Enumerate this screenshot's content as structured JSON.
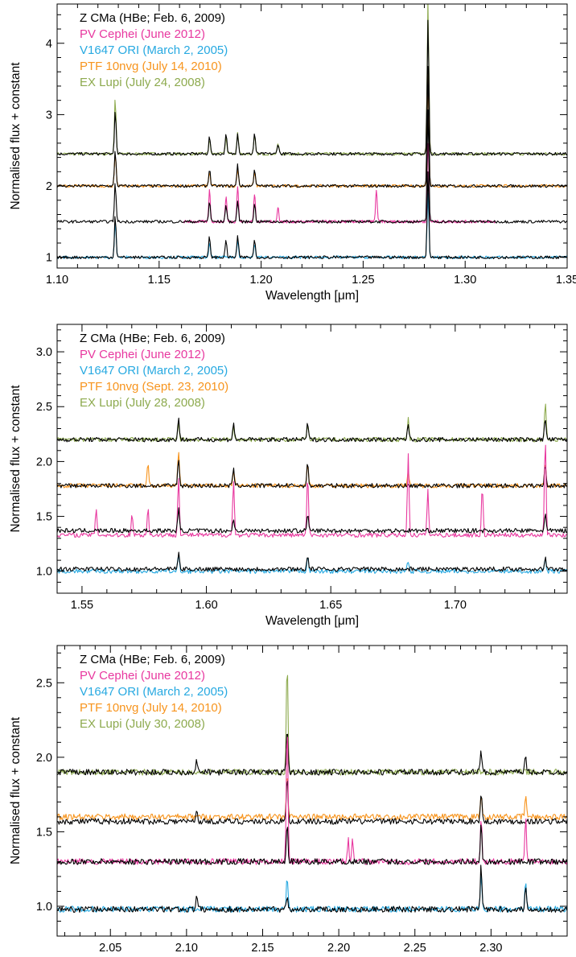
{
  "colors": {
    "black": "#000000",
    "magenta": "#e8389f",
    "blue": "#27a9e1",
    "orange": "#f7941d",
    "green": "#8daa4e"
  },
  "chart_data": [
    {
      "type": "line",
      "xlabel": "Wavelength [μm]",
      "ylabel": "Normalised flux + constant",
      "xlim": [
        1.1,
        1.35
      ],
      "ylim": [
        0.85,
        4.55
      ],
      "xticks": [
        "1.10",
        "1.15",
        "1.20",
        "1.25",
        "1.30",
        "1.35"
      ],
      "xtick_values": [
        1.1,
        1.15,
        1.2,
        1.25,
        1.3,
        1.35
      ],
      "yticks": [
        "1",
        "2",
        "3",
        "4"
      ],
      "ytick_values": [
        1,
        2,
        3,
        4
      ],
      "legend_position": "top-left",
      "legend": [
        {
          "label": "Z CMa (HBe; Feb. 6, 2009)",
          "color": "#000000"
        },
        {
          "label": "PV Cephei (June 2012)",
          "color": "#e8389f"
        },
        {
          "label": "V1647 ORI (March 2, 2005)",
          "color": "#27a9e1"
        },
        {
          "label": "PTF 10nvg (July 14, 2010)",
          "color": "#f7941d"
        },
        {
          "label": "EX Lupi (July 24, 2008)",
          "color": "#8daa4e"
        }
      ],
      "series": [
        {
          "name": "EX Lupi (July 24, 2008)",
          "color": "#8daa4e",
          "baseline": 2.45,
          "x": [
            1.1,
            1.35
          ],
          "lines": [
            [
              1.1285,
              0.8
            ],
            [
              1.1747,
              0.2
            ],
            [
              1.1828,
              0.25
            ],
            [
              1.1885,
              0.3
            ],
            [
              1.1968,
              0.25
            ],
            [
              1.2083,
              0.15
            ],
            [
              1.2818,
              2.2
            ]
          ]
        },
        {
          "name": "Z CMa (HBe; Feb. 6, 2009)",
          "color": "#000000",
          "baseline": 2.45,
          "x": [
            1.1,
            1.35
          ],
          "lines": [
            [
              1.1285,
              0.6
            ],
            [
              1.1747,
              0.25
            ],
            [
              1.1828,
              0.3
            ],
            [
              1.1885,
              0.3
            ],
            [
              1.1968,
              0.3
            ],
            [
              1.2083,
              0.15
            ],
            [
              1.2818,
              1.9
            ]
          ]
        },
        {
          "name": "PTF 10nvg (July 14, 2010)",
          "color": "#f7941d",
          "baseline": 2.0,
          "x": [
            1.1,
            1.35
          ],
          "lines": [
            [
              1.1285,
              0.45
            ],
            [
              1.1747,
              0.2
            ],
            [
              1.1885,
              0.25
            ],
            [
              1.1968,
              0.2
            ],
            [
              1.2818,
              1.6
            ]
          ]
        },
        {
          "name": "Z CMa (HBe; Feb. 6, 2009)",
          "color": "#000000",
          "baseline": 2.0,
          "x": [
            1.1,
            1.35
          ],
          "lines": [
            [
              1.1285,
              0.5
            ],
            [
              1.1747,
              0.25
            ],
            [
              1.1885,
              0.3
            ],
            [
              1.1968,
              0.25
            ],
            [
              1.2818,
              1.7
            ]
          ]
        },
        {
          "name": "PV Cephei (June 2012)",
          "color": "#e8389f",
          "baseline": 1.5,
          "x": [
            1.162,
            1.315
          ],
          "lines": [
            [
              1.1747,
              0.45
            ],
            [
              1.1828,
              0.35
            ],
            [
              1.1885,
              0.5
            ],
            [
              1.1968,
              0.4
            ],
            [
              1.2083,
              0.2
            ],
            [
              1.2565,
              0.45
            ],
            [
              1.2818,
              1.1
            ]
          ]
        },
        {
          "name": "Z CMa (HBe; Feb. 6, 2009)",
          "color": "#000000",
          "baseline": 1.5,
          "x": [
            1.1,
            1.35
          ],
          "lines": [
            [
              1.1285,
              0.55
            ],
            [
              1.1747,
              0.3
            ],
            [
              1.1828,
              0.25
            ],
            [
              1.1885,
              0.3
            ],
            [
              1.1968,
              0.25
            ],
            [
              1.2818,
              1.6
            ]
          ]
        },
        {
          "name": "V1647 ORI (March 2, 2005)",
          "color": "#27a9e1",
          "baseline": 1.0,
          "x": [
            1.1,
            1.35
          ],
          "lines": [
            [
              1.1285,
              0.5
            ],
            [
              1.1747,
              0.2
            ],
            [
              1.1885,
              0.25
            ],
            [
              1.1968,
              0.2
            ],
            [
              1.2818,
              0.9
            ]
          ]
        },
        {
          "name": "Z CMa (HBe; Feb. 6, 2009)",
          "color": "#000000",
          "baseline": 1.0,
          "x": [
            1.1,
            1.35
          ],
          "lines": [
            [
              1.1285,
              0.6
            ],
            [
              1.1747,
              0.3
            ],
            [
              1.1828,
              0.25
            ],
            [
              1.1885,
              0.3
            ],
            [
              1.1968,
              0.25
            ],
            [
              1.2818,
              1.2
            ]
          ]
        }
      ]
    },
    {
      "type": "line",
      "xlabel": "Wavelength [μm]",
      "ylabel": "Normalised flux + constant",
      "xlim": [
        1.54,
        1.745
      ],
      "ylim": [
        0.8,
        3.25
      ],
      "xticks": [
        "1.55",
        "1.60",
        "1.65",
        "1.70"
      ],
      "xtick_values": [
        1.55,
        1.6,
        1.65,
        1.7
      ],
      "yticks": [
        "1.0",
        "1.5",
        "2.0",
        "2.5",
        "3.0"
      ],
      "ytick_values": [
        1.0,
        1.5,
        2.0,
        2.5,
        3.0
      ],
      "legend_position": "top-left",
      "legend": [
        {
          "label": "Z CMa (HBe; Feb. 6, 2009)",
          "color": "#000000"
        },
        {
          "label": "PV Cephei (June 2012)",
          "color": "#e8389f"
        },
        {
          "label": "V1647 ORI (March 2, 2005)",
          "color": "#27a9e1"
        },
        {
          "label": "PTF 10nvg (Sept. 23, 2010)",
          "color": "#f7941d"
        },
        {
          "label": "EX Lupi (July 28, 2008)",
          "color": "#8daa4e"
        }
      ],
      "series": [
        {
          "name": "EX Lupi (July 28, 2008)",
          "color": "#8daa4e",
          "baseline": 2.2,
          "x": [
            1.54,
            1.745
          ],
          "lines": [
            [
              1.5888,
              0.15
            ],
            [
              1.6109,
              0.12
            ],
            [
              1.6407,
              0.15
            ],
            [
              1.6811,
              0.2
            ],
            [
              1.7362,
              0.35
            ]
          ]
        },
        {
          "name": "Z CMa (HBe; Feb. 6, 2009)",
          "color": "#000000",
          "baseline": 2.2,
          "x": [
            1.54,
            1.745
          ],
          "lines": [
            [
              1.5888,
              0.2
            ],
            [
              1.6109,
              0.15
            ],
            [
              1.6407,
              0.15
            ],
            [
              1.6811,
              0.15
            ],
            [
              1.7362,
              0.2
            ]
          ]
        },
        {
          "name": "PTF 10nvg (Sept. 23, 2010)",
          "color": "#f7941d",
          "baseline": 1.78,
          "x": [
            1.54,
            1.745
          ],
          "lines": [
            [
              1.5765,
              0.2
            ],
            [
              1.5888,
              0.3
            ],
            [
              1.6109,
              0.15
            ],
            [
              1.6407,
              0.2
            ],
            [
              1.6811,
              0.15
            ],
            [
              1.7362,
              0.2
            ]
          ]
        },
        {
          "name": "Z CMa (HBe; Feb. 6, 2009)",
          "color": "#000000",
          "baseline": 1.78,
          "x": [
            1.54,
            1.745
          ],
          "lines": [
            [
              1.5888,
              0.25
            ],
            [
              1.6109,
              0.15
            ],
            [
              1.6407,
              0.2
            ],
            [
              1.7362,
              0.2
            ]
          ]
        },
        {
          "name": "PV Cephei (June 2012)",
          "color": "#e8389f",
          "baseline": 1.33,
          "x": [
            1.54,
            1.745
          ],
          "lines": [
            [
              1.5557,
              0.25
            ],
            [
              1.5701,
              0.2
            ],
            [
              1.5765,
              0.25
            ],
            [
              1.5888,
              0.55
            ],
            [
              1.6109,
              0.5
            ],
            [
              1.6407,
              0.55
            ],
            [
              1.6811,
              0.75
            ],
            [
              1.689,
              0.4
            ],
            [
              1.7109,
              0.45
            ],
            [
              1.7362,
              0.9
            ]
          ]
        },
        {
          "name": "Z CMa (HBe; Feb. 6, 2009)",
          "color": "#000000",
          "baseline": 1.37,
          "x": [
            1.54,
            1.745
          ],
          "lines": [
            [
              1.5888,
              0.2
            ],
            [
              1.6109,
              0.1
            ],
            [
              1.6407,
              0.15
            ],
            [
              1.7362,
              0.15
            ]
          ]
        },
        {
          "name": "V1647 ORI (March 2, 2005)",
          "color": "#27a9e1",
          "baseline": 1.0,
          "x": [
            1.54,
            1.745
          ],
          "lines": [
            [
              1.5888,
              0.15
            ],
            [
              1.6407,
              0.15
            ],
            [
              1.6811,
              0.1
            ],
            [
              1.7362,
              0.12
            ]
          ]
        },
        {
          "name": "Z CMa (HBe; Feb. 6, 2009)",
          "color": "#000000",
          "baseline": 1.02,
          "x": [
            1.54,
            1.745
          ],
          "lines": [
            [
              1.5888,
              0.15
            ],
            [
              1.6407,
              0.12
            ],
            [
              1.7362,
              0.1
            ]
          ]
        }
      ]
    },
    {
      "type": "line",
      "xlabel": "Wavelength [μm]",
      "ylabel": "Normalised flux + constant",
      "xlim": [
        2.015,
        2.35
      ],
      "ylim": [
        0.8,
        2.75
      ],
      "xticks": [
        "2.05",
        "2.10",
        "2.15",
        "2.20",
        "2.25",
        "2.30"
      ],
      "xtick_values": [
        2.05,
        2.1,
        2.15,
        2.2,
        2.25,
        2.3
      ],
      "yticks": [
        "1.0",
        "1.5",
        "2.0",
        "2.5"
      ],
      "ytick_values": [
        1.0,
        1.5,
        2.0,
        2.5
      ],
      "legend_position": "top-left",
      "legend": [
        {
          "label": "Z CMa (HBe; Feb. 6, 2009)",
          "color": "#000000"
        },
        {
          "label": "PV Cephei (June 2012)",
          "color": "#e8389f"
        },
        {
          "label": "V1647 ORI (March 2, 2005)",
          "color": "#27a9e1"
        },
        {
          "label": "PTF 10nvg (July 14, 2010)",
          "color": "#f7941d"
        },
        {
          "label": "EX Lupi (July 30, 2008)",
          "color": "#8daa4e"
        }
      ],
      "series": [
        {
          "name": "EX Lupi (July 30, 2008)",
          "color": "#8daa4e",
          "baseline": 1.9,
          "x": [
            2.015,
            2.35
          ],
          "lines": [
            [
              2.1661,
              0.75
            ]
          ]
        },
        {
          "name": "Z CMa (HBe; Feb. 6, 2009)",
          "color": "#000000",
          "baseline": 1.9,
          "x": [
            2.015,
            2.35
          ],
          "lines": [
            [
              2.1066,
              0.1
            ],
            [
              2.1661,
              0.3
            ],
            [
              2.2935,
              0.15
            ],
            [
              2.3227,
              0.12
            ]
          ]
        },
        {
          "name": "PTF 10nvg (July 14, 2010)",
          "color": "#f7941d",
          "baseline": 1.6,
          "x": [
            2.015,
            2.35
          ],
          "lines": [
            [
              2.1661,
              0.3
            ],
            [
              2.2935,
              0.15
            ],
            [
              2.3227,
              0.15
            ]
          ]
        },
        {
          "name": "Z CMa (HBe; Feb. 6, 2009)",
          "color": "#000000",
          "baseline": 1.57,
          "x": [
            2.015,
            2.35
          ],
          "lines": [
            [
              2.1066,
              0.08
            ],
            [
              2.1661,
              0.3
            ],
            [
              2.2935,
              0.2
            ]
          ]
        },
        {
          "name": "PV Cephei (June 2012)",
          "color": "#e8389f",
          "baseline": 1.3,
          "x": [
            2.015,
            2.35
          ],
          "lines": [
            [
              2.1661,
              0.95
            ],
            [
              2.2062,
              0.15
            ],
            [
              2.209,
              0.15
            ],
            [
              2.2935,
              0.3
            ],
            [
              2.3227,
              0.3
            ]
          ]
        },
        {
          "name": "Z CMa (HBe; Feb. 6, 2009)",
          "color": "#000000",
          "baseline": 1.3,
          "x": [
            2.015,
            2.35
          ],
          "lines": [
            [
              2.1661,
              0.25
            ],
            [
              2.2935,
              0.25
            ]
          ]
        },
        {
          "name": "V1647 ORI (March 2, 2005)",
          "color": "#27a9e1",
          "baseline": 0.98,
          "x": [
            2.015,
            2.35
          ],
          "lines": [
            [
              2.1661,
              0.23
            ],
            [
              2.2935,
              0.25
            ],
            [
              2.3227,
              0.2
            ]
          ]
        },
        {
          "name": "Z CMa (HBe; Feb. 6, 2009)",
          "color": "#000000",
          "baseline": 0.98,
          "x": [
            2.015,
            2.35
          ],
          "lines": [
            [
              2.1066,
              0.1
            ],
            [
              2.1661,
              0.1
            ],
            [
              2.2935,
              0.3
            ],
            [
              2.3227,
              0.15
            ]
          ]
        }
      ]
    }
  ]
}
